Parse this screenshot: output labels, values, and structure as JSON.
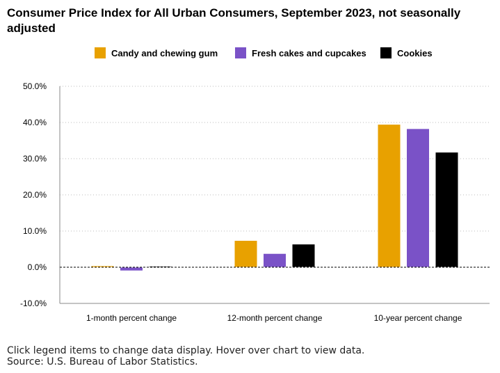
{
  "chart_data": {
    "type": "bar",
    "title": "Consumer Price Index for All Urban Consumers, September 2023, not seasonally adjusted",
    "categories": [
      "1-month percent change",
      "12-month percent change",
      "10-year percent change"
    ],
    "series": [
      {
        "name": "Candy and chewing gum",
        "color": "#e8a100",
        "values": [
          0.4,
          7.4,
          39.5
        ]
      },
      {
        "name": "Fresh cakes and cupcakes",
        "color": "#7a52c7",
        "values": [
          -1.0,
          3.8,
          38.3
        ]
      },
      {
        "name": "Cookies",
        "color": "#000000",
        "values": [
          0.3,
          6.4,
          31.8
        ]
      }
    ],
    "ylim": [
      -10,
      50
    ],
    "yticks": [
      -10,
      0,
      10,
      20,
      30,
      40,
      50
    ],
    "ytick_labels": [
      "-10.0%",
      "0.0%",
      "10.0%",
      "20.0%",
      "30.0%",
      "40.0%",
      "50.0%"
    ],
    "xlabel": "",
    "ylabel": "",
    "legend_position": "top-center",
    "grid": true
  },
  "footer": {
    "note": "Click legend items to change data display. Hover over chart to view data.",
    "source": "Source: U.S. Bureau of Labor Statistics."
  }
}
